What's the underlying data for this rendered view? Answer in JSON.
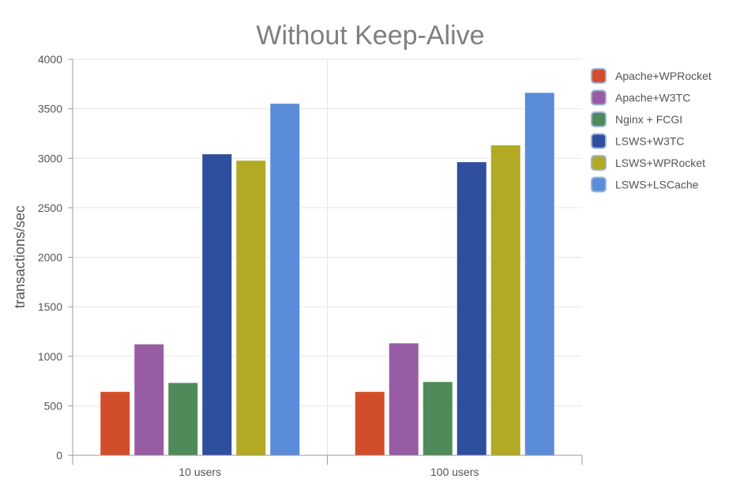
{
  "chart_data": {
    "type": "bar",
    "title": "Without Keep-Alive",
    "xlabel": "",
    "ylabel": "transactions/sec",
    "ylim": [
      0,
      4000
    ],
    "yticks": [
      0,
      500,
      1000,
      1500,
      2000,
      2500,
      3000,
      3500,
      4000
    ],
    "categories": [
      "10 users",
      "100 users"
    ],
    "grid": true,
    "legend_position": "right",
    "series": [
      {
        "name": "Apache+WPRocket",
        "color": "#d24e2b",
        "values": [
          645,
          645
        ]
      },
      {
        "name": "Apache+W3TC",
        "color": "#985ca4",
        "values": [
          1125,
          1135
        ]
      },
      {
        "name": "Nginx + FCGI",
        "color": "#4f8a5a",
        "values": [
          735,
          745
        ]
      },
      {
        "name": "LSWS+W3TC",
        "color": "#2e4e9e",
        "values": [
          3045,
          2965
        ]
      },
      {
        "name": "LSWS+WPRocket",
        "color": "#b2a925",
        "values": [
          2980,
          3135
        ]
      },
      {
        "name": "LSWS+LSCache",
        "color": "#5b8cda",
        "values": [
          3555,
          3665
        ]
      }
    ]
  }
}
